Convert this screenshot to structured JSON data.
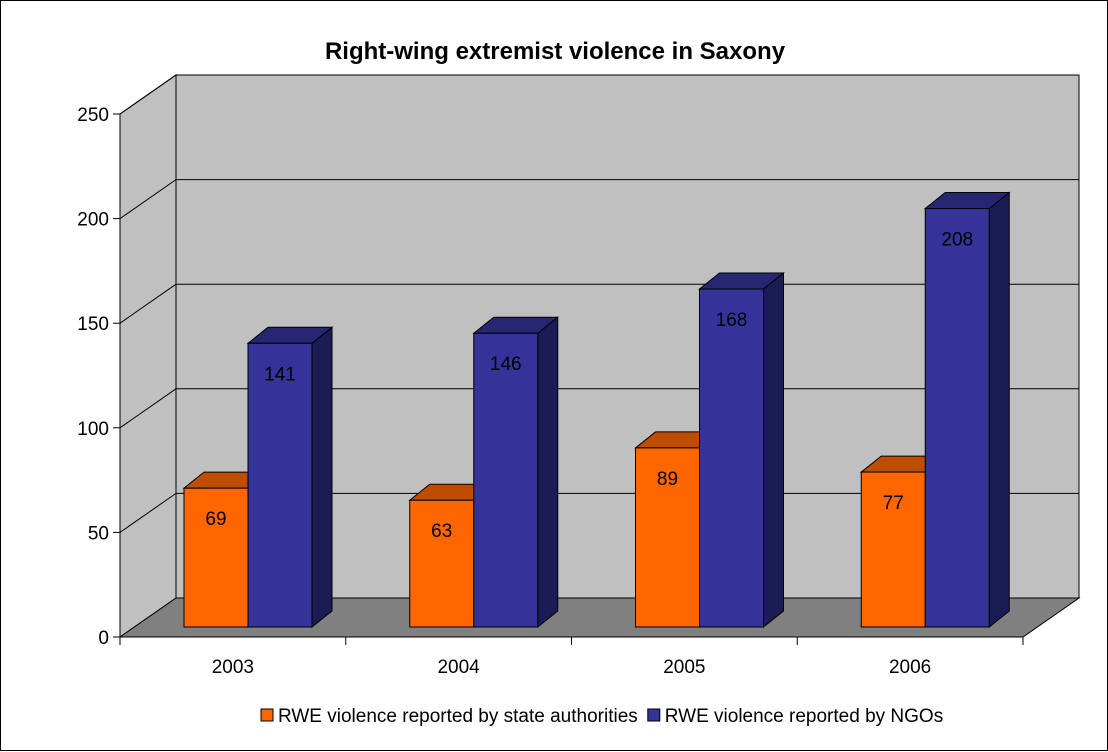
{
  "chart_data": {
    "type": "bar",
    "title": "Right-wing extremist violence in Saxony",
    "xlabel": "",
    "ylabel": "",
    "categories": [
      "2003",
      "2004",
      "2005",
      "2006"
    ],
    "series": [
      {
        "name": "RWE violence reported by state authorities",
        "values": [
          69,
          63,
          89,
          77
        ],
        "color": "#FF6600"
      },
      {
        "name": "RWE violence reported by NGOs",
        "values": [
          141,
          146,
          168,
          208
        ],
        "color": "#333399"
      }
    ],
    "y_ticks": [
      "0",
      "50",
      "100",
      "150",
      "200",
      "250"
    ],
    "ylim": [
      0,
      250
    ],
    "grid": true,
    "legend_position": "bottom",
    "style": "3d-clustered-column",
    "colors": {
      "wall": "#C0C0C0",
      "floor": "#808080"
    }
  }
}
